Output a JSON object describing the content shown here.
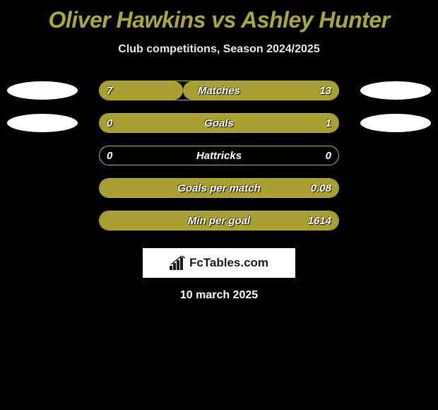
{
  "title": "Oliver Hawkins vs Ashley Hunter",
  "subtitle": "Club competitions, Season 2024/2025",
  "styling": {
    "background_color": "#000000",
    "accent_color": "#a8a837",
    "bar_fill_color": "#a8a030",
    "bar_border_color": "#b8b838",
    "text_color": "#ffffff",
    "ellipse_color": "#ffffff",
    "title_fontsize": 32,
    "subtitle_fontsize": 16,
    "label_fontsize": 15,
    "bar_track_width": 340,
    "bar_track_height": 28,
    "bar_radius": 14
  },
  "rows": [
    {
      "label": "Matches",
      "left_val": "7",
      "right_val": "13",
      "left_pct": 35,
      "right_pct": 65,
      "show_left_ellipse": true,
      "show_right_ellipse": true
    },
    {
      "label": "Goals",
      "left_val": "0",
      "right_val": "1",
      "left_pct": 0,
      "right_pct": 100,
      "show_left_ellipse": true,
      "show_right_ellipse": true
    },
    {
      "label": "Hattricks",
      "left_val": "0",
      "right_val": "0",
      "left_pct": 0,
      "right_pct": 0,
      "show_left_ellipse": false,
      "show_right_ellipse": false
    },
    {
      "label": "Goals per match",
      "left_val": "",
      "right_val": "0.08",
      "left_pct": 0,
      "right_pct": 100,
      "show_left_ellipse": false,
      "show_right_ellipse": false
    },
    {
      "label": "Min per goal",
      "left_val": "",
      "right_val": "1614",
      "left_pct": 0,
      "right_pct": 100,
      "show_left_ellipse": false,
      "show_right_ellipse": false
    }
  ],
  "brand": "FcTables.com",
  "date": "10 march 2025"
}
